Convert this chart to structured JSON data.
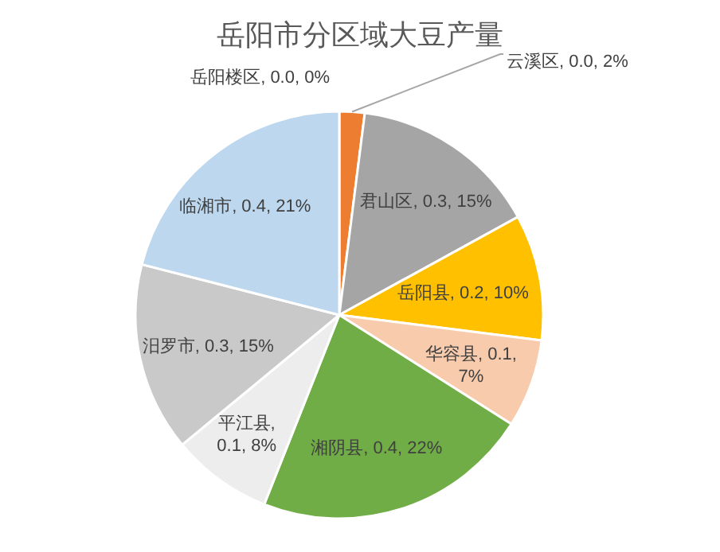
{
  "chart_data": {
    "type": "pie",
    "title": "岳阳市分区域大豆产量",
    "categories": [
      "岳阳楼区",
      "云溪区",
      "君山区",
      "岳阳县",
      "华容县",
      "湘阴县",
      "平江县",
      "汨罗市",
      "临湘市"
    ],
    "values": [
      0,
      2,
      15,
      10,
      7,
      22,
      8,
      15,
      21
    ],
    "value_labels": [
      ", 0.0, 0%",
      ", 0.0, 2%",
      ", 0.3, 15%",
      ", 0.2, 10%",
      ", 0.1, 7%",
      ", 0.4, 22%",
      ", 0.1, 8%",
      ", 0.3, 15%",
      ", 0.4, 21%"
    ],
    "colors": [
      "#4472c4",
      "#ed7d31",
      "#a5a5a5",
      "#ffc000",
      "#f8cbad",
      "#70ad47",
      "#ededed",
      "#c9c9c9",
      "#bdd7ee"
    ]
  }
}
